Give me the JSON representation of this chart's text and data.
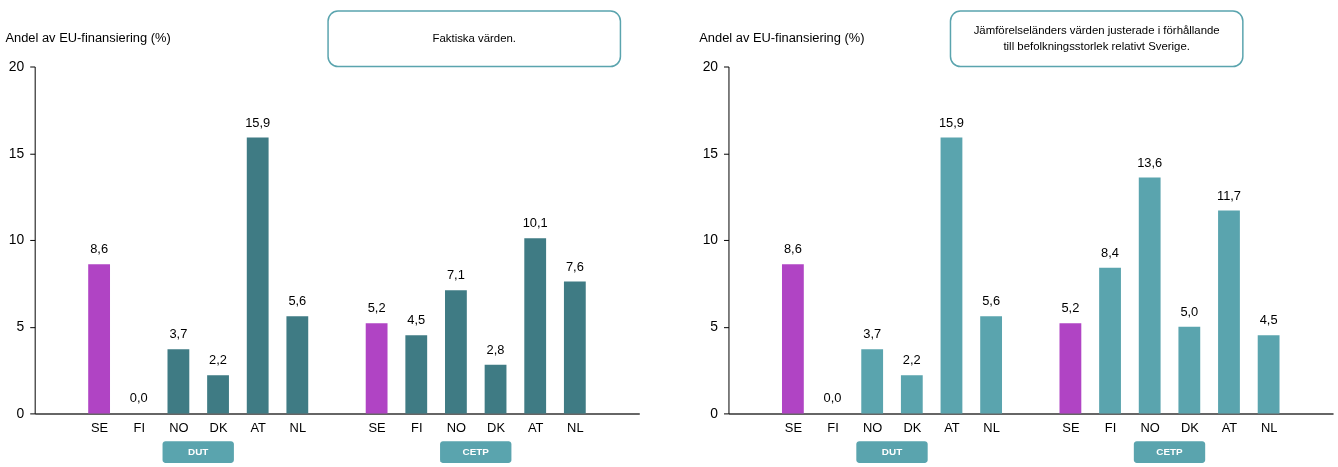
{
  "chart_data": [
    {
      "type": "bar",
      "ylabel": "Andel av EU-finansiering (%)",
      "categories": [
        null,
        "SE",
        "FI",
        "NO",
        "DK",
        "AT",
        "NL",
        null,
        "SE",
        "FI",
        "NO",
        "DK",
        "AT",
        "NL",
        null
      ],
      "values": [
        null,
        8.6,
        0.0,
        3.7,
        2.2,
        15.9,
        5.6,
        null,
        5.2,
        4.5,
        7.1,
        2.8,
        10.1,
        7.6,
        null
      ],
      "value_labels": [
        null,
        "8,6",
        "0,0",
        "3,7",
        "2,2",
        "15,9",
        "5,6",
        null,
        "5,2",
        "4,5",
        "7,1",
        "2,8",
        "10,1",
        "7,6",
        null
      ],
      "colors": [
        null,
        "#b044c4",
        "#3f7b84",
        "#3f7b84",
        "#3f7b84",
        "#3f7b84",
        "#3f7b84",
        null,
        "#b044c4",
        "#3f7b84",
        "#3f7b84",
        "#3f7b84",
        "#3f7b84",
        "#3f7b84",
        null
      ],
      "ylim": [
        0,
        20
      ],
      "yticks": [
        0,
        5,
        10,
        15,
        20
      ],
      "grid": false,
      "annotations": [
        "Faktiska värden.",
        "DUT",
        "CETP"
      ]
    },
    {
      "type": "bar",
      "ylabel": "Andel av EU-finansiering (%)",
      "categories": [
        null,
        "SE",
        "FI",
        "NO",
        "DK",
        "AT",
        "NL",
        null,
        "SE",
        "FI",
        "NO",
        "DK",
        "AT",
        "NL",
        null
      ],
      "values": [
        null,
        8.6,
        0.0,
        3.7,
        2.2,
        15.9,
        5.6,
        null,
        5.2,
        8.4,
        13.6,
        5.0,
        11.7,
        4.5,
        null
      ],
      "value_labels": [
        null,
        "8,6",
        "0,0",
        "3,7",
        "2,2",
        "15,9",
        "5,6",
        null,
        "5,2",
        "8,4",
        "13,6",
        "5,0",
        "11,7",
        "4,5",
        null
      ],
      "colors": [
        null,
        "#b044c4",
        "#5aa4ae",
        "#5aa4ae",
        "#5aa4ae",
        "#5aa4ae",
        "#5aa4ae",
        null,
        "#b044c4",
        "#5aa4ae",
        "#5aa4ae",
        "#5aa4ae",
        "#5aa4ae",
        "#5aa4ae",
        null
      ],
      "ylim": [
        0,
        20
      ],
      "yticks": [
        0,
        5,
        10,
        15,
        20
      ],
      "grid": false,
      "annotations": [
        "Jämförelseländers värden justerade i förhållande till befolkningsstorlek relativt Sverige.",
        "DUT",
        "CETP"
      ]
    }
  ]
}
